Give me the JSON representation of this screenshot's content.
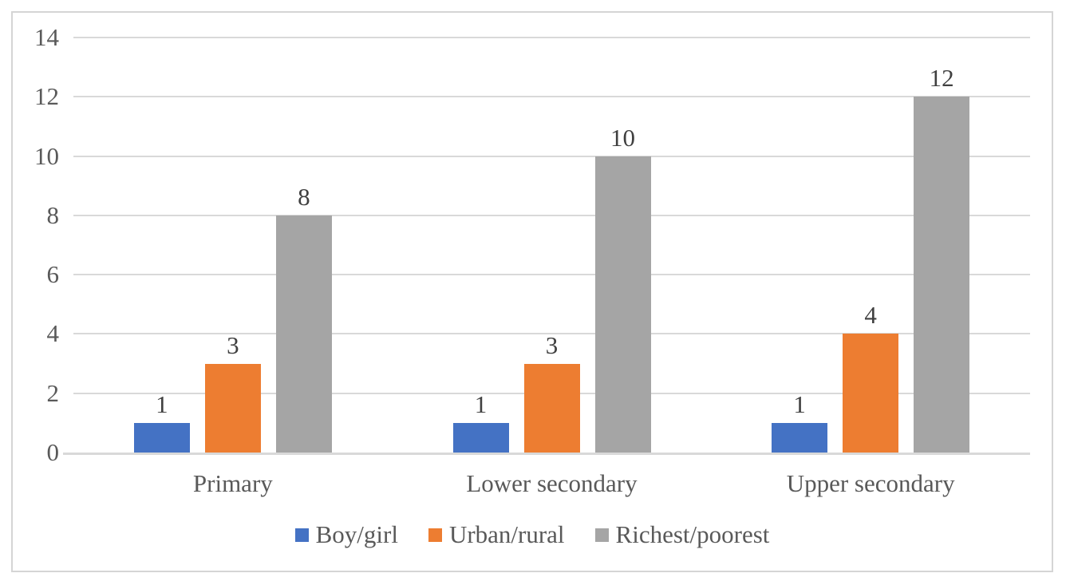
{
  "chart_data": {
    "type": "bar",
    "title": "",
    "xlabel": "",
    "ylabel": "",
    "categories": [
      "Primary",
      "Lower secondary",
      "Upper secondary"
    ],
    "series": [
      {
        "name": "Boy/girl",
        "color": "#4472C4",
        "values": [
          1,
          1,
          1
        ]
      },
      {
        "name": "Urban/rural",
        "color": "#ED7D31",
        "values": [
          3,
          3,
          4
        ]
      },
      {
        "name": "Richest/poorest",
        "color": "#A5A5A5",
        "values": [
          8,
          10,
          12
        ]
      }
    ],
    "y_axis": {
      "min": 0,
      "max": 14,
      "step": 2,
      "tick_labels": [
        "0",
        "2",
        "4",
        "6",
        "8",
        "10",
        "12",
        "14"
      ]
    },
    "data_labels": [
      [
        "1",
        "1",
        "1"
      ],
      [
        "3",
        "3",
        "4"
      ],
      [
        "8",
        "10",
        "12"
      ]
    ],
    "grid": true,
    "legend_position": "bottom"
  },
  "style": {
    "background": "#FFFFFF",
    "frame_border_color": "#D5D5D5",
    "gridline_color": "#D9D9D9",
    "axis_line_color": "#D9D9D9",
    "axis_text_color": "#595959",
    "data_label_color": "#404040"
  }
}
